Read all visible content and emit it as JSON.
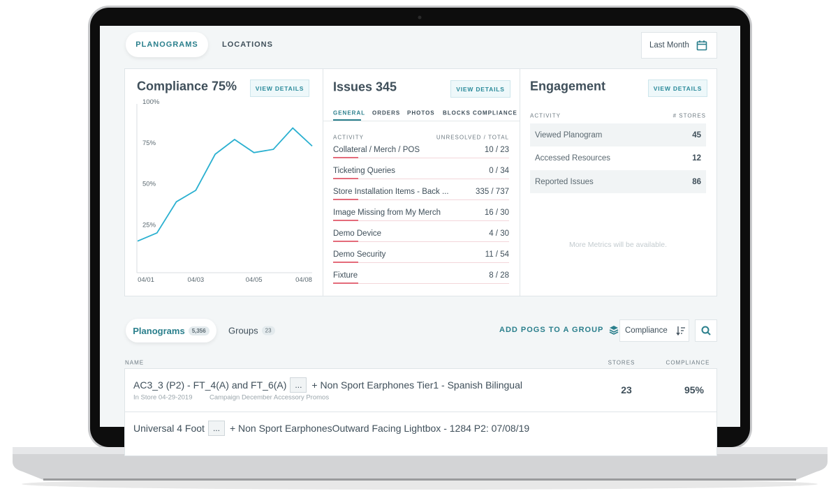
{
  "tabs": [
    "PLANOGRAMS",
    "LOCATIONS"
  ],
  "date_filter": "Last Month",
  "compliance": {
    "title": "Compliance 75%",
    "button": "VIEW DETAILS"
  },
  "chart_data": {
    "type": "line",
    "categories": [
      "04/01",
      null,
      null,
      "04/03",
      null,
      null,
      "04/05",
      null,
      null,
      "04/08"
    ],
    "series": [
      {
        "name": "Compliance",
        "color": "#2ab0d0",
        "values": [
          18,
          23,
          42,
          49,
          71,
          80,
          72,
          74,
          87,
          76
        ]
      }
    ],
    "ylim": [
      0,
      100
    ],
    "yticks": [
      {
        "value": 25,
        "label": "25%"
      },
      {
        "value": 50,
        "label": "50%"
      },
      {
        "value": 75,
        "label": "75%"
      },
      {
        "value": 100,
        "label": "100%"
      }
    ]
  },
  "issues": {
    "title": "Issues 345",
    "button": "VIEW DETAILS",
    "tabs": [
      "GENERAL",
      "ORDERS",
      "PHOTOS",
      "BLOCKS COMPLIANCE"
    ],
    "columns": [
      "ACTIVITY",
      "UNRESOLVED / TOTAL"
    ],
    "rows": [
      [
        "Collateral / Merch / POS",
        "10 / 23"
      ],
      [
        "Ticketing Queries",
        "0 / 34"
      ],
      [
        "Store Installation Items - Back ...",
        "335 / 737"
      ],
      [
        "Image Missing from My Merch",
        "16 / 30"
      ],
      [
        "Demo Device",
        "4 / 30"
      ],
      [
        "Demo Security",
        "11 / 54"
      ],
      [
        "Fixture",
        "8 / 28"
      ]
    ]
  },
  "engagement": {
    "title": "Engagement",
    "button": "VIEW DETAILS",
    "columns": [
      "ACTIVITY",
      "# STORES"
    ],
    "rows": [
      [
        "Viewed Planogram",
        "45"
      ],
      [
        "Accessed Resources",
        "12"
      ],
      [
        "Reported Issues",
        "86"
      ]
    ],
    "note": "More Metrics will be available."
  },
  "list": {
    "tabs": [
      {
        "label": "Planograms",
        "count": "5,356"
      },
      {
        "label": "Groups",
        "count": "23"
      }
    ],
    "add_button": "ADD POGS TO A GROUP",
    "sort": "Compliance",
    "columns": [
      "NAME",
      "STORES",
      "COMPLIANCE"
    ],
    "rows": [
      {
        "name_start": "AC3_3 (P2) - FT_4(A) and FT_6(A)",
        "more": "...",
        "name_end": "+ Non Sport Earphones Tier1 - Spanish Bilingual",
        "date": "In Store 04-29-2019",
        "campaign": "Campaign December Accessory Promos",
        "stores": "23",
        "compliance": "95%"
      },
      {
        "name_start": "Universal 4 Foot",
        "more": "...",
        "name_end": "+ Non Sport EarphonesOutward Facing Lightbox - 1284 P2: 07/08/19"
      }
    ]
  }
}
